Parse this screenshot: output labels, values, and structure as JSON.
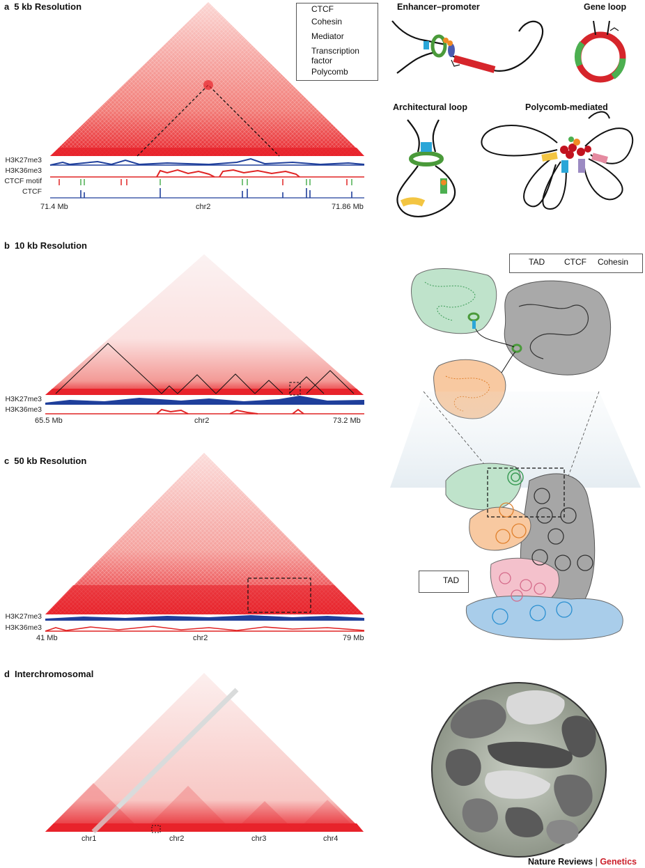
{
  "panels": {
    "a": {
      "letter": "a",
      "title": "5 kb Resolution",
      "tracks": [
        "H3K27me3",
        "H3K36me3",
        "CTCF motif",
        "CTCF"
      ],
      "start": "71.4 Mb",
      "chrom": "chr2",
      "end": "71.86 Mb",
      "legend": [
        "CTCF",
        "Cohesin",
        "Mediator",
        "Transcription factor",
        "Polycomb"
      ],
      "schematics": [
        "Enhancer–promoter",
        "Gene loop",
        "Architectural loop",
        "Polycomb-mediated"
      ]
    },
    "b": {
      "letter": "b",
      "title": "10 kb Resolution",
      "tracks": [
        "H3K27me3",
        "H3K36me3"
      ],
      "start": "65.5 Mb",
      "chrom": "chr2",
      "end": "73.2 Mb",
      "legend": [
        "TAD",
        "CTCF",
        "Cohesin"
      ]
    },
    "c": {
      "letter": "c",
      "title": "50 kb Resolution",
      "tracks": [
        "H3K27me3",
        "H3K36me3"
      ],
      "start": "41 Mb",
      "chrom": "chr2",
      "end": "79 Mb",
      "legend": [
        "TAD"
      ]
    },
    "d": {
      "letter": "d",
      "title": "Interchromosomal",
      "chromosomes": [
        "chr1",
        "chr2",
        "chr3",
        "chr4"
      ]
    }
  },
  "footer": {
    "journal": "Nature Reviews",
    "separator": "|",
    "section": "Genetics"
  },
  "colors": {
    "hic_red": "#e8232b",
    "track_blue": "#1f3f9b",
    "track_red": "#e02424",
    "ctcf": "#2aa6d8",
    "cohesin": "#4a9a3a",
    "mediator": "#4a5bb0",
    "tf": "#f08a24",
    "polycomb": "#c2121f",
    "brand": "#cc1f2a"
  }
}
